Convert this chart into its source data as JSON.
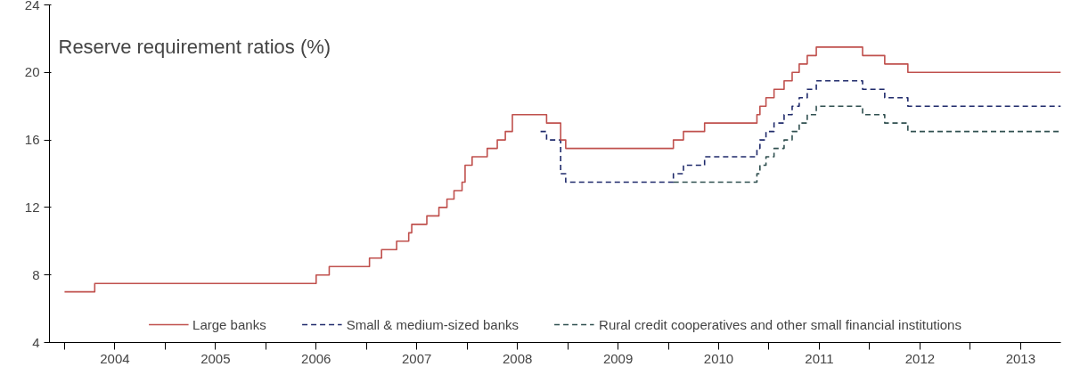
{
  "chart_data": {
    "type": "step",
    "title": "Reserve requirement ratios (%)",
    "xlim": [
      2003.85,
      2013.9
    ],
    "ylim": [
      4,
      24
    ],
    "yticks": [
      4,
      8,
      12,
      16,
      20,
      24
    ],
    "xticks": [
      {
        "value": 2004,
        "label": null
      },
      {
        "value": 2004.5,
        "label": "2004"
      },
      {
        "value": 2005,
        "label": null
      },
      {
        "value": 2005.5,
        "label": "2005"
      },
      {
        "value": 2006,
        "label": null
      },
      {
        "value": 2006.5,
        "label": "2006"
      },
      {
        "value": 2007,
        "label": null
      },
      {
        "value": 2007.5,
        "label": "2007"
      },
      {
        "value": 2008,
        "label": null
      },
      {
        "value": 2008.5,
        "label": "2008"
      },
      {
        "value": 2009,
        "label": null
      },
      {
        "value": 2009.5,
        "label": "2009"
      },
      {
        "value": 2010,
        "label": null
      },
      {
        "value": 2010.5,
        "label": "2010"
      },
      {
        "value": 2011,
        "label": null
      },
      {
        "value": 2011.5,
        "label": "2011"
      },
      {
        "value": 2012,
        "label": null
      },
      {
        "value": 2012.5,
        "label": "2012"
      },
      {
        "value": 2013,
        "label": null
      },
      {
        "value": 2013.5,
        "label": "2013"
      }
    ],
    "grid": false,
    "legend": "bottom",
    "marker": "none",
    "series": [
      {
        "name": "Rural credit cooperatives and other small financial institutions",
        "color": "#2f4f4f",
        "line_style": "dashed",
        "x": [
          2010.05,
          2010.88,
          2010.91,
          2010.97,
          2011.05,
          2011.15,
          2011.23,
          2011.3,
          2011.38,
          2011.47,
          2011.93,
          2012.15,
          2012.38,
          2013.9
        ],
        "values": [
          13.5,
          14,
          14.5,
          15,
          15.5,
          16,
          16.5,
          17,
          17.5,
          18,
          17.5,
          17,
          16.5,
          16.5
        ]
      },
      {
        "name": "Small & medium-sized banks",
        "color": "#1f2a6b",
        "line_style": "dashed",
        "x": [
          2008.73,
          2008.79,
          2008.93,
          2008.98,
          2010.05,
          2010.15,
          2010.36,
          2010.88,
          2010.91,
          2010.97,
          2011.05,
          2011.15,
          2011.23,
          2011.3,
          2011.38,
          2011.47,
          2011.93,
          2012.15,
          2012.38,
          2013.9
        ],
        "values": [
          16.5,
          16,
          14,
          13.5,
          14,
          14.5,
          15,
          15.5,
          16,
          16.5,
          17,
          17.5,
          18,
          18.5,
          19,
          19.5,
          19,
          18.5,
          18,
          18
        ]
      },
      {
        "name": "Large banks",
        "color": "#c0504d",
        "line_style": "solid",
        "x": [
          2004.0,
          2004.3,
          2006.5,
          2006.63,
          2007.03,
          2007.15,
          2007.3,
          2007.42,
          2007.45,
          2007.6,
          2007.72,
          2007.8,
          2007.87,
          2007.95,
          2007.98,
          2008.05,
          2008.2,
          2008.3,
          2008.38,
          2008.45,
          2008.79,
          2008.93,
          2008.98,
          2010.05,
          2010.15,
          2010.36,
          2010.88,
          2010.91,
          2010.97,
          2011.05,
          2011.15,
          2011.23,
          2011.3,
          2011.38,
          2011.47,
          2011.93,
          2012.15,
          2012.38,
          2013.9
        ],
        "values": [
          7,
          7.5,
          8,
          8.5,
          9,
          9.5,
          10,
          10.5,
          11,
          11.5,
          12,
          12.5,
          13,
          13.5,
          14.5,
          15,
          15.5,
          16,
          16.5,
          17.5,
          17,
          16,
          15.5,
          16,
          16.5,
          17,
          17.5,
          18,
          18.5,
          19,
          19.5,
          20,
          20.5,
          21,
          21.5,
          21,
          20.5,
          20,
          20
        ]
      }
    ]
  }
}
